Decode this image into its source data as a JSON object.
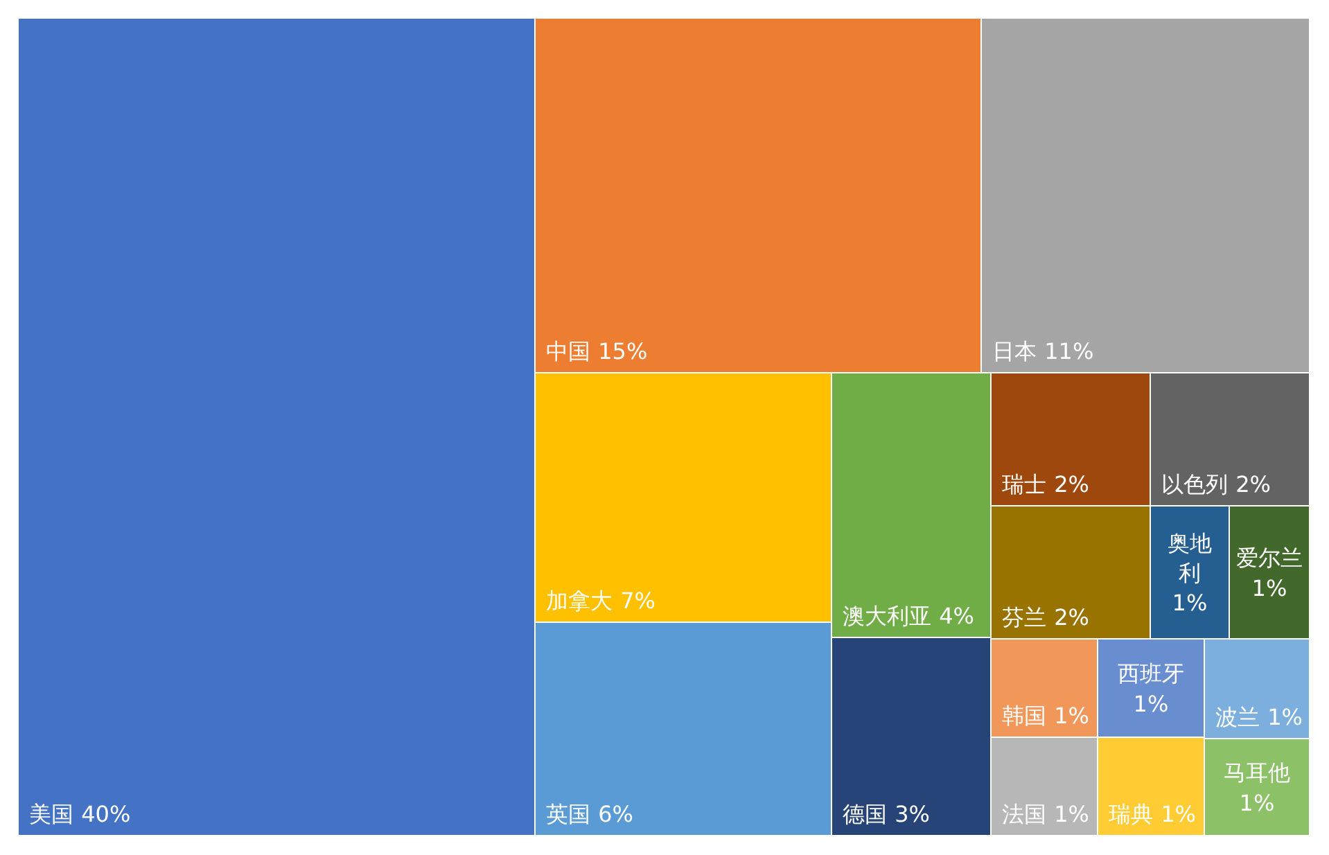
{
  "chart_data": {
    "type": "other",
    "categories": [
      "美国",
      "中国",
      "日本",
      "加拿大",
      "英国",
      "澳大利亚",
      "德国",
      "瑞士",
      "以色列",
      "芬兰",
      "奥地利",
      "爱尔兰",
      "韩国",
      "法国",
      "西班牙",
      "瑞典",
      "波兰",
      "马耳他"
    ],
    "values": [
      40,
      15,
      11,
      7,
      6,
      4,
      3,
      2,
      2,
      2,
      1,
      1,
      1,
      1,
      1,
      1,
      1,
      1
    ],
    "value_labels": [
      "40%",
      "15%",
      "11%",
      "7%",
      "6%",
      "4%",
      "3%",
      "2%",
      "2%",
      "2%",
      "1%",
      "1%",
      "1%",
      "1%",
      "1%",
      "1%",
      "1%",
      "1%"
    ],
    "colors": [
      "#4472c4",
      "#ed7d31",
      "#a5a5a5",
      "#ffc000",
      "#5b9bd5",
      "#70ad47",
      "#264478",
      "#9e480e",
      "#636363",
      "#997300",
      "#255e91",
      "#43682b",
      "#f1975a",
      "#b7b7b7",
      "#698ed0",
      "#ffcd33",
      "#7cafdd",
      "#8cc168"
    ]
  }
}
